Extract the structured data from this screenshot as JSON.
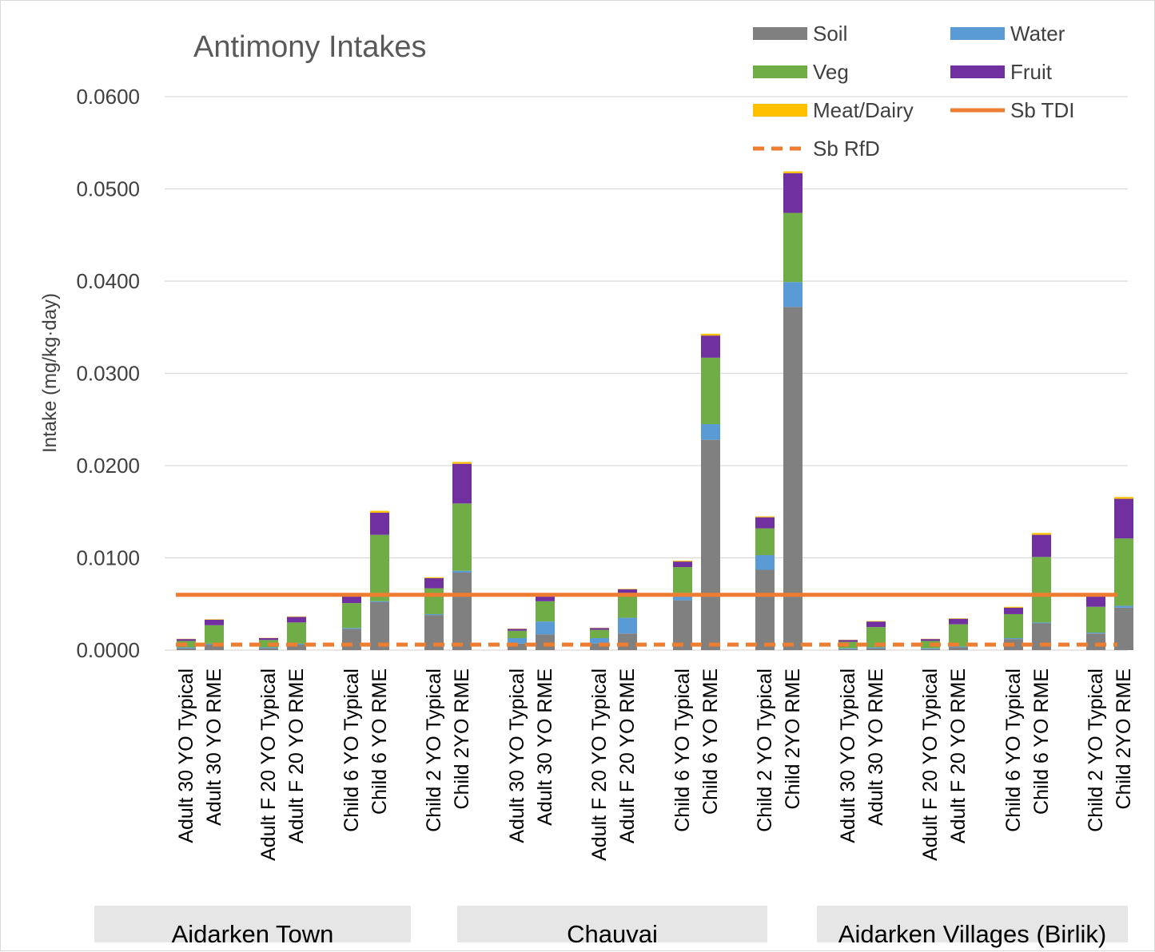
{
  "chart_data": {
    "type": "bar",
    "stacked": true,
    "title": "Antimony Intakes",
    "ylabel": "Intake (mg/kg·day)",
    "xlabel": "",
    "ylim": [
      0,
      0.06
    ],
    "yticks": [
      "0.0000",
      "0.0100",
      "0.0200",
      "0.0300",
      "0.0400",
      "0.0500",
      "0.0600"
    ],
    "grid": true,
    "legend_position": "top-right",
    "categories": [
      "Adult 30 YO Typical",
      "Adult 30 YO RME",
      "Adult F 20 YO Typical",
      "Adult F 20 YO RME",
      "Child 6 YO Typical",
      "Child 6 YO RME",
      "Child 2 YO Typical",
      "Child 2YO RME",
      "Adult 30 YO Typical",
      "Adult 30 YO RME",
      "Adult F 20 YO Typical",
      "Adult F 20 YO RME",
      "Child 6 YO Typical",
      "Child 6 YO RME",
      "Child 2 YO Typical",
      "Child 2YO RME",
      "Adult 30 YO Typical",
      "Adult 30 YO RME",
      "Adult F 20 YO Typical",
      "Adult F 20 YO RME",
      "Child 6 YO Typical",
      "Child 6 YO RME",
      "Child 2 YO Typical",
      "Child 2YO RME"
    ],
    "groups": [
      {
        "name": "Aidarken Town",
        "start": 0,
        "end": 7
      },
      {
        "name": "Chauvai",
        "start": 8,
        "end": 15
      },
      {
        "name": "Aidarken Villages (Birlik)",
        "start": 16,
        "end": 23
      }
    ],
    "series": [
      {
        "name": "Soil",
        "color": "#808080",
        "values": [
          0.0002,
          0.0006,
          0.0002,
          0.0006,
          0.0023,
          0.0052,
          0.0038,
          0.0084,
          0.0007,
          0.0017,
          0.0007,
          0.0018,
          0.0054,
          0.0228,
          0.0087,
          0.0372,
          0.0001,
          0.0002,
          0.0001,
          0.0003,
          0.0012,
          0.0029,
          0.0018,
          0.0046
        ]
      },
      {
        "name": "Water",
        "color": "#5b9bd5",
        "values": [
          0.0001,
          0.0001,
          0.0001,
          0.0001,
          0.0001,
          0.0001,
          0.0001,
          0.0002,
          0.0006,
          0.0014,
          0.0006,
          0.0017,
          0.0008,
          0.0017,
          0.0016,
          0.0027,
          0.0001,
          0.0001,
          0.0001,
          0.0001,
          0.0001,
          0.0001,
          0.0001,
          0.0002
        ]
      },
      {
        "name": "Veg",
        "color": "#70ad47",
        "values": [
          0.0007,
          0.002,
          0.0008,
          0.0023,
          0.0027,
          0.0072,
          0.0028,
          0.0073,
          0.0008,
          0.0022,
          0.0009,
          0.0027,
          0.0028,
          0.0072,
          0.0029,
          0.0075,
          0.0007,
          0.0022,
          0.0008,
          0.0024,
          0.0026,
          0.0071,
          0.0028,
          0.0073
        ]
      },
      {
        "name": "Fruit",
        "color": "#7030a0",
        "values": [
          0.0002,
          0.0006,
          0.0002,
          0.0006,
          0.0007,
          0.0024,
          0.0011,
          0.0043,
          0.0002,
          0.0005,
          0.0002,
          0.0004,
          0.0006,
          0.0024,
          0.0012,
          0.0043,
          0.0002,
          0.0006,
          0.0002,
          0.0006,
          0.0007,
          0.0024,
          0.0011,
          0.0043
        ]
      },
      {
        "name": "Meat/Dairy",
        "color": "#ffc000",
        "values": [
          3e-05,
          5e-05,
          3e-05,
          5e-05,
          0.0001,
          0.0002,
          0.0001,
          0.0002,
          3e-05,
          5e-05,
          3e-05,
          5e-05,
          0.0001,
          0.0002,
          0.0001,
          0.0002,
          3e-05,
          5e-05,
          3e-05,
          5e-05,
          0.0001,
          0.0002,
          0.0001,
          0.0002
        ]
      }
    ],
    "reference_lines": [
      {
        "name": "Sb TDI",
        "value": 0.006,
        "color": "#ed7d31",
        "style": "solid"
      },
      {
        "name": "Sb RfD",
        "value": 0.0006,
        "color": "#ed7d31",
        "style": "dashed"
      }
    ]
  }
}
